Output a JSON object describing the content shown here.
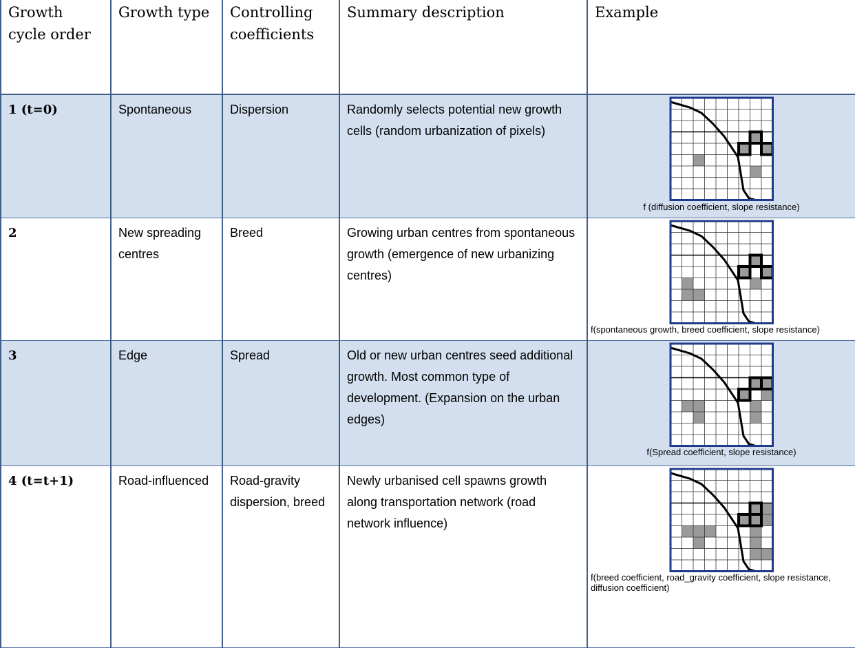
{
  "table": {
    "header": [
      "Growth cycle order",
      "Growth type",
      "Controlling coefficients",
      "Summary description",
      "Example"
    ],
    "rows": [
      [
        "1 (t=0)",
        "Spontaneous",
        "Dispersion",
        "Randomly selects potential new growth cells (random urbanization of pixels)",
        "f (diffusion coefficient, slope resistance)"
      ],
      [
        "2",
        "New spreading centres",
        "Breed",
        "Growing urban centres from spontaneous growth (emergence of new urbanizing centres)",
        "f(spontaneous growth, breed coefficient, slope resistance)"
      ],
      [
        "3",
        "Edge",
        "Spread",
        "Old or new urban centres seed additional growth. Most common type of development. (Expansion on the urban edges)",
        "f(Spread coefficient, slope resistance)"
      ],
      [
        "4  (t=t+1)",
        "Road-influenced",
        "Road-gravity dispersion, breed",
        "Newly urbanised cell spawns growth along transportation network (road network influence)",
        "f(breed coefficient, road_gravity coefficient, slope resistance, diffusion coefficient)"
      ]
    ]
  }
}
